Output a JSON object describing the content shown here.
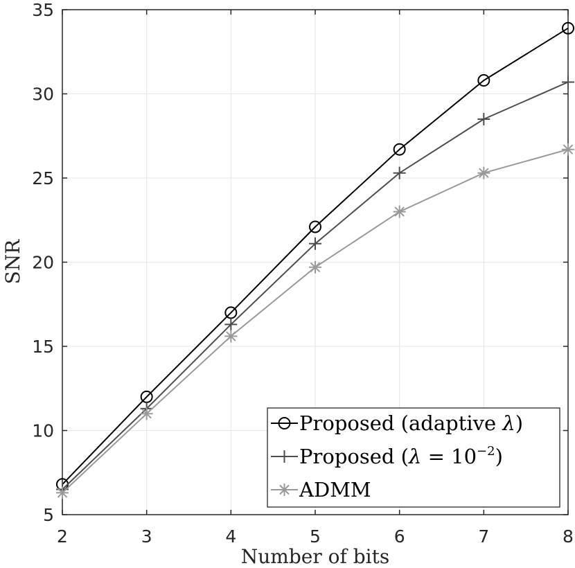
{
  "chart_data": {
    "type": "line",
    "title": "",
    "xlabel": "Number of bits",
    "ylabel": "SNR",
    "xlim": [
      2,
      8
    ],
    "ylim": [
      5,
      35
    ],
    "xticks": [
      "2",
      "3",
      "4",
      "5",
      "6",
      "7",
      "8"
    ],
    "yticks": [
      "5",
      "10",
      "15",
      "20",
      "25",
      "30",
      "35"
    ],
    "grid": true,
    "legend_position": "bottom-right",
    "x": [
      2,
      3,
      4,
      5,
      6,
      7,
      8
    ],
    "series": [
      {
        "name": "Proposed (adaptive λ)",
        "legend_main": "Proposed (adaptive ",
        "legend_symbol": "λ",
        "legend_tail": ")",
        "marker": "circle",
        "color": "#000000",
        "values": [
          6.8,
          12.0,
          17.0,
          22.1,
          26.7,
          30.8,
          33.9
        ]
      },
      {
        "name": "Proposed (λ = 10⁻²)",
        "legend_main": "Proposed (",
        "legend_symbol": "λ",
        "legend_eq": " = 10",
        "legend_sup": "−2",
        "legend_tail": ")",
        "marker": "plus",
        "color": "#4d4d4d",
        "values": [
          6.5,
          11.3,
          16.3,
          21.1,
          25.3,
          28.5,
          30.7
        ]
      },
      {
        "name": "ADMM",
        "legend_main": "ADMM",
        "marker": "asterisk",
        "color": "#999999",
        "values": [
          6.3,
          11.0,
          15.6,
          19.7,
          23.0,
          25.3,
          26.7
        ]
      }
    ]
  }
}
